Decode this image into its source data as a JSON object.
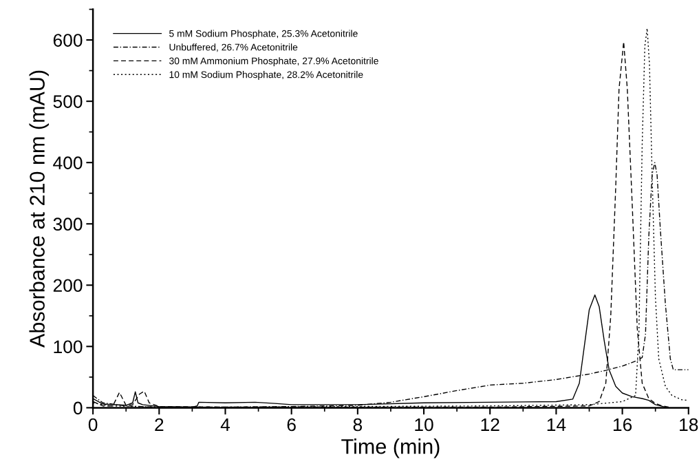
{
  "chart_data": {
    "type": "line",
    "xlabel": "Time (min)",
    "ylabel": "Absorbance at 210 nm (mAU)",
    "xlim": [
      0,
      18
    ],
    "xticks": [
      0,
      2,
      4,
      6,
      8,
      10,
      12,
      14,
      16,
      18
    ],
    "ylim": [
      0,
      650
    ],
    "yticks": [
      0,
      100,
      200,
      300,
      400,
      500,
      600
    ],
    "grid": false,
    "legend": "top left",
    "marker": "none",
    "series": [
      {
        "name": "5 mM Sodium Phosphate, 25.3% Acetonitrile",
        "color": "#000000",
        "line_style": "solid",
        "x": [
          0,
          0.3,
          1.0,
          1.2,
          1.28,
          1.36,
          1.5,
          2.0,
          3.0,
          3.15,
          3.2,
          4.0,
          4.9,
          5.5,
          6.0,
          8.0,
          10.0,
          12.0,
          14.0,
          14.5,
          14.7,
          14.85,
          15.0,
          15.17,
          15.3,
          15.45,
          15.6,
          15.8,
          16.0,
          16.3,
          16.6,
          16.8,
          17.0,
          17.3
        ],
        "values": [
          15,
          6,
          4,
          8,
          26,
          8,
          5,
          2,
          1,
          3,
          9,
          8,
          9,
          7,
          5,
          5,
          8,
          9,
          10,
          14,
          40,
          100,
          160,
          184,
          165,
          110,
          62,
          35,
          24,
          18,
          15,
          12,
          5,
          1
        ]
      },
      {
        "name": "Unbuffered, 26.7% Acetonitrile",
        "color": "#000000",
        "line_style": "dashdot",
        "x": [
          0,
          0.3,
          1.0,
          2.0,
          4.0,
          6.0,
          8.0,
          9.0,
          10.0,
          11.0,
          12.0,
          13.0,
          14.0,
          15.0,
          15.5,
          16.0,
          16.4,
          16.6,
          16.7,
          16.8,
          16.9,
          16.98,
          17.05,
          17.15,
          17.3,
          17.45,
          17.54,
          18.0
        ],
        "values": [
          20,
          8,
          3,
          1,
          1,
          2,
          4,
          9,
          18,
          28,
          37,
          40,
          46,
          55,
          61,
          68,
          76,
          82,
          120,
          280,
          380,
          400,
          380,
          290,
          170,
          80,
          62,
          62
        ]
      },
      {
        "name": "30 mM Ammonium Phosphate, 27.9% Acetonitrile",
        "color": "#000000",
        "line_style": "dashed",
        "x": [
          0,
          0.3,
          0.6,
          0.8,
          1.0,
          1.2,
          1.4,
          1.55,
          1.7,
          2.0,
          4.0,
          8.0,
          12.0,
          15.0,
          15.3,
          15.5,
          15.65,
          15.8,
          15.9,
          16.04,
          16.15,
          16.3,
          16.45,
          16.6,
          16.8,
          17.0,
          17.2,
          17.4
        ],
        "values": [
          10,
          3,
          3,
          25,
          4,
          5,
          22,
          27,
          8,
          2,
          1,
          1,
          1,
          3,
          10,
          40,
          150,
          360,
          520,
          597,
          520,
          330,
          130,
          40,
          15,
          7,
          3,
          1
        ]
      },
      {
        "name": "10 mM Sodium Phosphate, 28.2% Acetonitrile",
        "color": "#000000",
        "line_style": "dotted",
        "x": [
          0,
          0.5,
          2.0,
          4.0,
          8.0,
          12.0,
          15.0,
          16.0,
          16.4,
          16.5,
          16.6,
          16.68,
          16.75,
          16.82,
          16.9,
          17.0,
          17.1,
          17.3,
          17.5,
          17.8,
          18.0
        ],
        "values": [
          8,
          3,
          1,
          1,
          2,
          3,
          5,
          10,
          20,
          120,
          430,
          590,
          619,
          560,
          380,
          180,
          80,
          35,
          20,
          13,
          12
        ]
      }
    ]
  }
}
